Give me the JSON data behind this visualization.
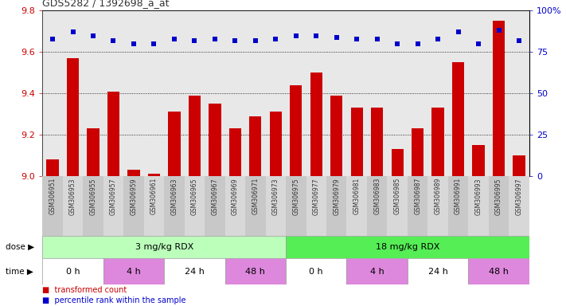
{
  "title": "GDS5282 / 1392698_a_at",
  "samples": [
    "GSM306951",
    "GSM306953",
    "GSM306955",
    "GSM306957",
    "GSM306959",
    "GSM306961",
    "GSM306963",
    "GSM306965",
    "GSM306967",
    "GSM306969",
    "GSM306971",
    "GSM306973",
    "GSM306975",
    "GSM306977",
    "GSM306979",
    "GSM306981",
    "GSM306983",
    "GSM306985",
    "GSM306987",
    "GSM306989",
    "GSM306991",
    "GSM306993",
    "GSM306995",
    "GSM306997"
  ],
  "bar_values": [
    9.08,
    9.57,
    9.23,
    9.41,
    9.03,
    9.01,
    9.31,
    9.39,
    9.35,
    9.23,
    9.29,
    9.31,
    9.44,
    9.5,
    9.39,
    9.33,
    9.33,
    9.13,
    9.23,
    9.33,
    9.55,
    9.15,
    9.75,
    9.1
  ],
  "percentile_values": [
    83,
    87,
    85,
    82,
    80,
    80,
    83,
    82,
    83,
    82,
    82,
    83,
    85,
    85,
    84,
    83,
    83,
    80,
    80,
    83,
    87,
    80,
    88,
    82
  ],
  "bar_color": "#cc0000",
  "dot_color": "#0000cc",
  "ylim_left": [
    9.0,
    9.8
  ],
  "ylim_right": [
    0,
    100
  ],
  "yticks_left": [
    9.0,
    9.2,
    9.4,
    9.6,
    9.8
  ],
  "yticks_right": [
    0,
    25,
    50,
    75,
    100
  ],
  "ytick_labels_right": [
    "0",
    "25",
    "50",
    "75",
    "100%"
  ],
  "bg_color": "#ffffff",
  "plot_bg_color": "#e8e8e8",
  "xticklabel_bg": "#d8d8d8",
  "dose_color_1": "#bbffbb",
  "dose_color_2": "#55ee55",
  "time_color_white": "#ffffff",
  "time_color_pink": "#dd88dd",
  "grid_yticks": [
    9.2,
    9.4,
    9.6
  ],
  "dose_labels": [
    "3 mg/kg RDX",
    "18 mg/kg RDX"
  ],
  "time_labels": [
    "0 h",
    "4 h",
    "24 h",
    "48 h",
    "0 h",
    "4 h",
    "24 h",
    "48 h"
  ],
  "time_ranges": [
    [
      -0.5,
      2.5
    ],
    [
      2.5,
      5.5
    ],
    [
      5.5,
      8.5
    ],
    [
      8.5,
      11.5
    ],
    [
      11.5,
      14.5
    ],
    [
      14.5,
      17.5
    ],
    [
      17.5,
      20.5
    ],
    [
      20.5,
      23.5
    ]
  ],
  "time_colors": [
    "#ffffff",
    "#dd88dd",
    "#ffffff",
    "#dd88dd",
    "#ffffff",
    "#dd88dd",
    "#ffffff",
    "#dd88dd"
  ]
}
